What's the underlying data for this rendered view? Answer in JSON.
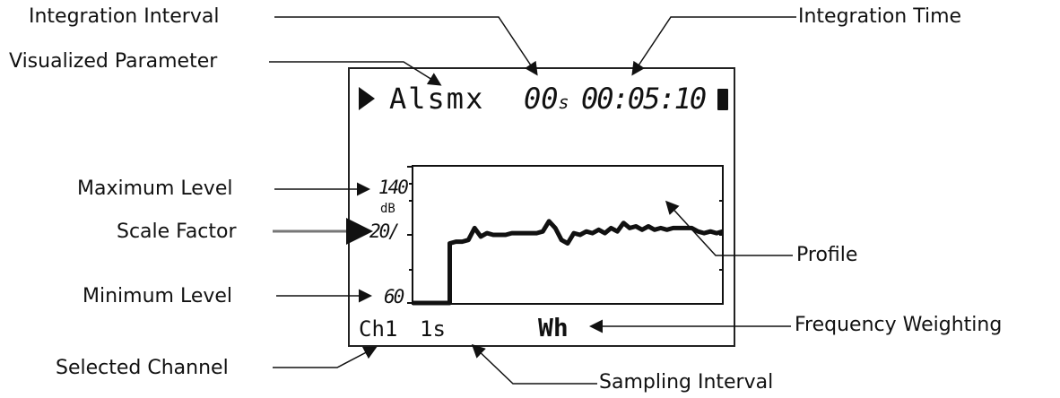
{
  "callouts": {
    "integration_interval": "Integration Interval",
    "integration_time": "Integration Time",
    "visualized_parameter": "Visualized Parameter",
    "maximum_level": "Maximum Level",
    "scale_factor": "Scale Factor",
    "minimum_level": "Minimum Level",
    "profile": "Profile",
    "frequency_weighting": "Frequency Weighting",
    "selected_channel": "Selected Channel",
    "sampling_interval": "Sampling Interval"
  },
  "screen": {
    "play_icon": "play-icon",
    "parameter": "Alsmx",
    "interval_value": "00",
    "interval_unit": "s",
    "time": "00:05:10",
    "battery_icon": "battery-icon",
    "max_level": "140",
    "unit": "dB",
    "scale": "20/",
    "min_level": "60",
    "channel": "Ch1",
    "sampling": "1s",
    "weighting": "Wh"
  },
  "chart_data": {
    "type": "line",
    "ylim": [
      60,
      140
    ],
    "profile": [
      [
        0,
        60
      ],
      [
        1,
        60
      ],
      [
        2,
        60
      ],
      [
        3,
        60
      ],
      [
        4,
        60
      ],
      [
        5,
        60
      ],
      [
        6,
        60
      ],
      [
        6,
        95
      ],
      [
        7,
        96
      ],
      [
        8,
        96
      ],
      [
        9,
        97
      ],
      [
        10,
        104
      ],
      [
        11,
        99
      ],
      [
        12,
        101
      ],
      [
        13,
        100
      ],
      [
        14,
        100
      ],
      [
        15,
        100
      ],
      [
        16,
        101
      ],
      [
        17,
        101
      ],
      [
        18,
        101
      ],
      [
        19,
        101
      ],
      [
        20,
        101
      ],
      [
        21,
        102
      ],
      [
        22,
        108
      ],
      [
        23,
        104
      ],
      [
        24,
        97
      ],
      [
        25,
        95
      ],
      [
        26,
        101
      ],
      [
        27,
        100
      ],
      [
        28,
        102
      ],
      [
        29,
        101
      ],
      [
        30,
        103
      ],
      [
        31,
        101
      ],
      [
        32,
        104
      ],
      [
        33,
        102
      ],
      [
        34,
        107
      ],
      [
        35,
        104
      ],
      [
        36,
        105
      ],
      [
        37,
        103
      ],
      [
        38,
        105
      ],
      [
        39,
        103
      ],
      [
        40,
        104
      ],
      [
        41,
        103
      ],
      [
        42,
        104
      ],
      [
        43,
        104
      ],
      [
        44,
        104
      ],
      [
        45,
        104
      ],
      [
        46,
        102
      ],
      [
        47,
        101
      ],
      [
        48,
        102
      ],
      [
        49,
        101
      ],
      [
        50,
        102
      ]
    ]
  }
}
